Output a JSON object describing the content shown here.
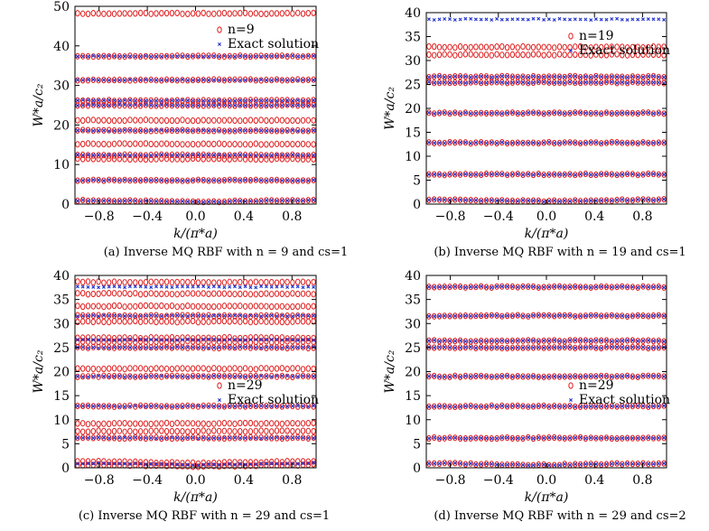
{
  "chart_data": [
    {
      "type": "scatter",
      "xlabel": "k/(π*a)",
      "ylabel": "W*a/c₂",
      "ylim": [
        0,
        50
      ],
      "yticks": [
        0,
        10,
        20,
        30,
        40,
        50
      ],
      "xlim": [
        -1,
        1
      ],
      "xticks": [
        -0.8,
        -0.4,
        0.0,
        0.4,
        0.8
      ],
      "xtick_labels": [
        "−0.8",
        "−0.4",
        "0.0",
        "0.4",
        "0.8"
      ],
      "legend": {
        "placement": "top-right",
        "entries": [
          "n=9",
          "Exact solution"
        ]
      },
      "caption": "(a) Inverse MQ RBF with n = 9 and cs=1",
      "series": [
        {
          "name": "n=9",
          "marker": "circle",
          "color": "#e02020",
          "bands": [
            0.8,
            6.0,
            11.4,
            12.4,
            15.2,
            18.6,
            21.2,
            25.0,
            26.2,
            31.4,
            37.4,
            48.2
          ]
        },
        {
          "name": "Exact solution",
          "marker": "x",
          "color": "#2233cc",
          "bands": [
            0.8,
            6.0,
            12.4,
            18.6,
            25.0,
            26.2,
            31.4,
            37.4
          ]
        }
      ]
    },
    {
      "type": "scatter",
      "xlabel": "k/(π*a)",
      "ylabel": "W*a/c₂",
      "ylim": [
        0,
        40
      ],
      "yticks": [
        0,
        5,
        10,
        15,
        20,
        25,
        30,
        35,
        40
      ],
      "xlim": [
        -1,
        1
      ],
      "xticks": [
        -0.8,
        -0.4,
        0.0,
        0.4,
        0.8
      ],
      "xtick_labels": [
        "−0.8",
        "−0.4",
        "0.0",
        "0.4",
        "0.8"
      ],
      "legend": {
        "placement": "top-right",
        "entries": [
          "n=19",
          "Exact solution"
        ]
      },
      "caption": "(b) Inverse MQ RBF with n = 19 and cs=1",
      "series": [
        {
          "name": "n=19",
          "marker": "circle",
          "color": "#e02020",
          "bands": [
            0.8,
            6.2,
            12.8,
            19.0,
            25.4,
            26.6,
            31.2,
            32.8
          ]
        },
        {
          "name": "Exact solution",
          "marker": "x",
          "color": "#2233cc",
          "bands": [
            0.8,
            6.2,
            12.8,
            19.0,
            25.4,
            26.6,
            38.6
          ]
        }
      ]
    },
    {
      "type": "scatter",
      "xlabel": "k/(π*a)",
      "ylabel": "W*a/c₂",
      "ylim": [
        0,
        40
      ],
      "yticks": [
        0,
        5,
        10,
        15,
        20,
        25,
        30,
        35,
        40
      ],
      "xlim": [
        -1,
        1
      ],
      "xticks": [
        -0.8,
        -0.4,
        0.0,
        0.4,
        0.8
      ],
      "xtick_labels": [
        "−0.8",
        "−0.4",
        "0.0",
        "0.4",
        "0.8"
      ],
      "legend": {
        "placement": "right",
        "entries": [
          "n=29",
          "Exact solution"
        ]
      },
      "caption": "(c) Inverse MQ RBF with n = 29 and cs=1",
      "series": [
        {
          "name": "n=29",
          "marker": "circle",
          "color": "#e02020",
          "bands": [
            0.5,
            1.2,
            6.2,
            7.6,
            9.2,
            12.8,
            19.0,
            20.6,
            25.0,
            26.2,
            27.0,
            30.4,
            31.6,
            33.6,
            36.2,
            38.6
          ]
        },
        {
          "name": "Exact solution",
          "marker": "x",
          "color": "#2233cc",
          "bands": [
            0.8,
            6.2,
            12.8,
            19.0,
            25.0,
            26.6,
            31.6,
            37.6
          ]
        }
      ]
    },
    {
      "type": "scatter",
      "xlabel": "k/(π*a)",
      "ylabel": "W*a/c₂",
      "ylim": [
        0,
        40
      ],
      "yticks": [
        0,
        5,
        10,
        15,
        20,
        25,
        30,
        35,
        40
      ],
      "xlim": [
        -1,
        1
      ],
      "xticks": [
        -0.8,
        -0.4,
        0.0,
        0.4,
        0.8
      ],
      "xtick_labels": [
        "−0.8",
        "−0.4",
        "0.0",
        "0.4",
        "0.8"
      ],
      "legend": {
        "placement": "right",
        "entries": [
          "n=29",
          "Exact solution"
        ]
      },
      "caption": "(d) Inverse MQ RBF with n = 29 and cs=2",
      "series": [
        {
          "name": "n=29",
          "marker": "circle",
          "color": "#e02020",
          "bands": [
            0.8,
            6.2,
            12.8,
            19.0,
            25.0,
            26.4,
            31.6,
            37.6
          ]
        },
        {
          "name": "Exact solution",
          "marker": "x",
          "color": "#2233cc",
          "bands": [
            0.8,
            6.2,
            12.8,
            19.0,
            25.0,
            26.4,
            31.6,
            37.6
          ]
        }
      ]
    }
  ]
}
